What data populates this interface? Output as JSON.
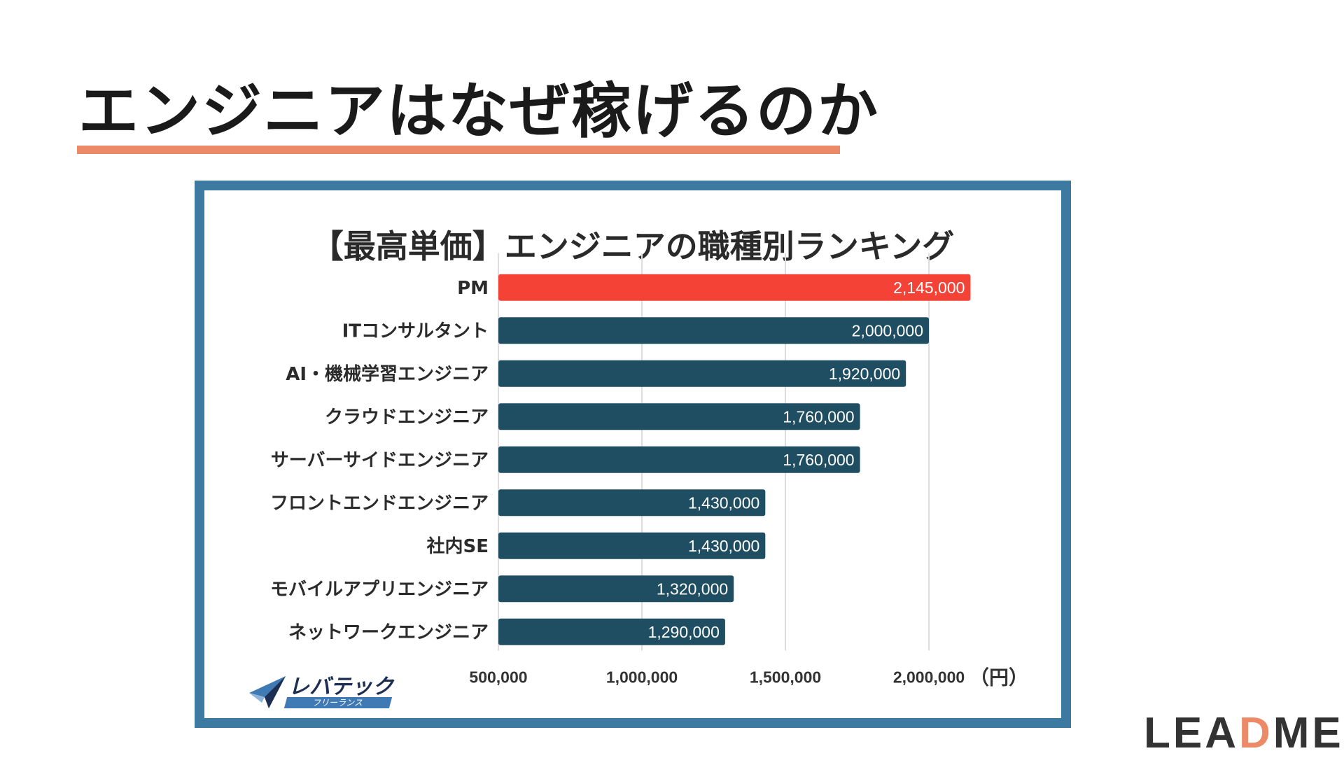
{
  "slide": {
    "title": "エンジニアはなぜ稼げるのか"
  },
  "colors": {
    "title_underline": "#ec8a67",
    "frame": "#3d7aa1",
    "bar": "#1f4e63",
    "bar_highlight": "#f44336"
  },
  "chart_data": {
    "type": "bar",
    "orientation": "horizontal",
    "title": "【最高単価】エンジニアの職種別ランキング",
    "categories": [
      "PM",
      "ITコンサルタント",
      "AI・機械学習エンジニア",
      "クラウドエンジニア",
      "サーバーサイドエンジニア",
      "フロントエンドエンジニア",
      "社内SE",
      "モバイルアプリエンジニア",
      "ネットワークエンジニア"
    ],
    "values": [
      2145000,
      2000000,
      1920000,
      1760000,
      1760000,
      1430000,
      1430000,
      1320000,
      1290000
    ],
    "value_labels": [
      "2,145,000",
      "2,000,000",
      "1,920,000",
      "1,760,000",
      "1,760,000",
      "1,430,000",
      "1,430,000",
      "1,320,000",
      "1,290,000"
    ],
    "highlight_index": 0,
    "xlim": [
      500000,
      2500000
    ],
    "x_ticks": [
      500000,
      1000000,
      1500000,
      2000000
    ],
    "x_tick_labels": [
      "500,000",
      "1,000,000",
      "1,500,000",
      "2,000,000"
    ],
    "x_unit": "（円）",
    "grid": true
  },
  "logo": {
    "name": "レバテック",
    "sub": "フリーランス",
    "icon": "paper-plane-icon"
  },
  "brand": {
    "text_before": "LEA",
    "text_accent": "D",
    "text_after": "ME"
  }
}
